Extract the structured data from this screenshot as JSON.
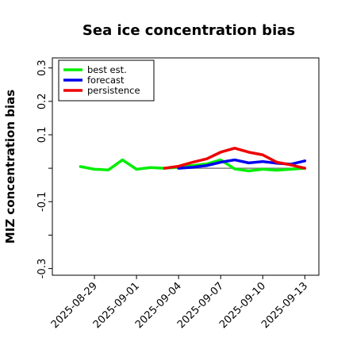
{
  "chart_data": {
    "type": "line",
    "title": "Sea ice concentration bias",
    "xlabel": "",
    "ylabel": "MIZ concentration bias",
    "xlim": [
      "2025-08-26",
      "2025-09-14"
    ],
    "ylim": [
      -0.32,
      0.33
    ],
    "yticks": [
      -0.3,
      -0.2,
      -0.1,
      0.0,
      0.1,
      0.2,
      0.3
    ],
    "ytick_labels": [
      "-0.3",
      "",
      "-0.1",
      "",
      "0.1",
      "0.2",
      "0.3"
    ],
    "xticks": [
      "2025-08-29",
      "2025-09-01",
      "2025-09-04",
      "2025-09-07",
      "2025-09-10",
      "2025-09-13"
    ],
    "xtick_labels": [
      "2025-08-29",
      "2025-09-01",
      "2025-09-04",
      "2025-09-07",
      "2025-09-10",
      "2025-09-13"
    ],
    "highlight_xtick": "2025-09-04",
    "highlight_color": "#228b22",
    "grid": false,
    "legend": "top-left",
    "reference_line": {
      "y": 0.0,
      "from": "2025-09-04",
      "to": "2025-09-13",
      "color": "#808080"
    },
    "series": [
      {
        "name": "best est.",
        "color": "#00ee00",
        "x": [
          "2025-08-28",
          "2025-08-29",
          "2025-08-30",
          "2025-08-31",
          "2025-09-01",
          "2025-09-02",
          "2025-09-03",
          "2025-09-04",
          "2025-09-05",
          "2025-09-06",
          "2025-09-07",
          "2025-09-08",
          "2025-09-09",
          "2025-09-10",
          "2025-09-11",
          "2025-09-12",
          "2025-09-13"
        ],
        "values": [
          0.005,
          -0.003,
          -0.005,
          0.025,
          -0.003,
          0.002,
          0.0,
          0.003,
          0.008,
          0.013,
          0.025,
          -0.002,
          -0.008,
          -0.003,
          -0.006,
          -0.003,
          0.0
        ]
      },
      {
        "name": "forecast",
        "color": "#0000ee",
        "x": [
          "2025-09-04",
          "2025-09-05",
          "2025-09-06",
          "2025-09-07",
          "2025-09-08",
          "2025-09-09",
          "2025-09-10",
          "2025-09-11",
          "2025-09-12",
          "2025-09-13"
        ],
        "values": [
          0.0,
          0.003,
          0.008,
          0.018,
          0.025,
          0.016,
          0.02,
          0.015,
          0.012,
          0.022
        ]
      },
      {
        "name": "persistence",
        "color": "#ee0000",
        "x": [
          "2025-09-03",
          "2025-09-04",
          "2025-09-05",
          "2025-09-06",
          "2025-09-07",
          "2025-09-08",
          "2025-09-09",
          "2025-09-10",
          "2025-09-11",
          "2025-09-12",
          "2025-09-13"
        ],
        "values": [
          0.0,
          0.006,
          0.018,
          0.028,
          0.048,
          0.06,
          0.048,
          0.04,
          0.018,
          0.01,
          0.0
        ]
      }
    ]
  }
}
